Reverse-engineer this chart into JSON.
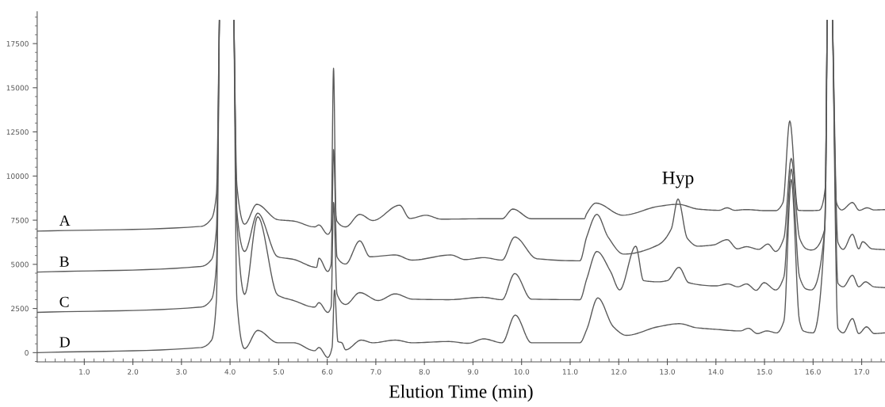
{
  "chart_data": {
    "type": "line",
    "xlabel": "Elution Time (min)",
    "xlim": [
      0.03,
      17.48
    ],
    "ylim": [
      -520,
      19300
    ],
    "xticks": [
      {
        "value": 0.2,
        "label": null
      },
      {
        "value": 0.4,
        "label": null
      },
      {
        "value": 0.6,
        "label": null
      },
      {
        "value": 0.8,
        "label": null
      },
      {
        "value": 1,
        "label": "1.0"
      },
      {
        "value": 1.2,
        "label": null
      },
      {
        "value": 1.4,
        "label": null
      },
      {
        "value": 1.6,
        "label": null
      },
      {
        "value": 1.8,
        "label": null
      },
      {
        "value": 2,
        "label": "2.0"
      },
      {
        "value": 2.2,
        "label": null
      },
      {
        "value": 2.4,
        "label": null
      },
      {
        "value": 2.6,
        "label": null
      },
      {
        "value": 2.8,
        "label": null
      },
      {
        "value": 3,
        "label": "3.0"
      },
      {
        "value": 3.2,
        "label": null
      },
      {
        "value": 3.4,
        "label": null
      },
      {
        "value": 3.6,
        "label": null
      },
      {
        "value": 3.8,
        "label": null
      },
      {
        "value": 4,
        "label": "4.0"
      },
      {
        "value": 4.2,
        "label": null
      },
      {
        "value": 4.4,
        "label": null
      },
      {
        "value": 4.6,
        "label": null
      },
      {
        "value": 4.8,
        "label": null
      },
      {
        "value": 5,
        "label": "5.0"
      },
      {
        "value": 5.2,
        "label": null
      },
      {
        "value": 5.4,
        "label": null
      },
      {
        "value": 5.6,
        "label": null
      },
      {
        "value": 5.8,
        "label": null
      },
      {
        "value": 6,
        "label": "6.0"
      },
      {
        "value": 6.2,
        "label": null
      },
      {
        "value": 6.4,
        "label": null
      },
      {
        "value": 6.6,
        "label": null
      },
      {
        "value": 6.8,
        "label": null
      },
      {
        "value": 7,
        "label": "7.0"
      },
      {
        "value": 7.2,
        "label": null
      },
      {
        "value": 7.4,
        "label": null
      },
      {
        "value": 7.6,
        "label": null
      },
      {
        "value": 7.8,
        "label": null
      },
      {
        "value": 8,
        "label": "8.0"
      },
      {
        "value": 8.2,
        "label": null
      },
      {
        "value": 8.4,
        "label": null
      },
      {
        "value": 8.6,
        "label": null
      },
      {
        "value": 8.8,
        "label": null
      },
      {
        "value": 9,
        "label": "9.0"
      },
      {
        "value": 9.2,
        "label": null
      },
      {
        "value": 9.4,
        "label": null
      },
      {
        "value": 9.6,
        "label": null
      },
      {
        "value": 9.8,
        "label": null
      },
      {
        "value": 10,
        "label": "10.0"
      },
      {
        "value": 10.2,
        "label": null
      },
      {
        "value": 10.4,
        "label": null
      },
      {
        "value": 10.6,
        "label": null
      },
      {
        "value": 10.8,
        "label": null
      },
      {
        "value": 11,
        "label": "11.0"
      },
      {
        "value": 11.2,
        "label": null
      },
      {
        "value": 11.4,
        "label": null
      },
      {
        "value": 11.6,
        "label": null
      },
      {
        "value": 11.8,
        "label": null
      },
      {
        "value": 12,
        "label": "12.0"
      },
      {
        "value": 12.2,
        "label": null
      },
      {
        "value": 12.4,
        "label": null
      },
      {
        "value": 12.6,
        "label": null
      },
      {
        "value": 12.8,
        "label": null
      },
      {
        "value": 13,
        "label": "13.0"
      },
      {
        "value": 13.2,
        "label": null
      },
      {
        "value": 13.4,
        "label": null
      },
      {
        "value": 13.6,
        "label": null
      },
      {
        "value": 13.8,
        "label": null
      },
      {
        "value": 14,
        "label": "14.0"
      },
      {
        "value": 14.2,
        "label": null
      },
      {
        "value": 14.4,
        "label": null
      },
      {
        "value": 14.6,
        "label": null
      },
      {
        "value": 14.8,
        "label": null
      },
      {
        "value": 15,
        "label": "15.0"
      },
      {
        "value": 15.2,
        "label": null
      },
      {
        "value": 15.4,
        "label": null
      },
      {
        "value": 15.6,
        "label": null
      },
      {
        "value": 15.8,
        "label": null
      },
      {
        "value": 16,
        "label": "16.0"
      },
      {
        "value": 16.2,
        "label": null
      },
      {
        "value": 16.4,
        "label": null
      },
      {
        "value": 16.6,
        "label": null
      },
      {
        "value": 16.8,
        "label": null
      },
      {
        "value": 17,
        "label": "17.0"
      },
      {
        "value": 17.2,
        "label": null
      },
      {
        "value": 17.4,
        "label": null
      }
    ],
    "yticks": [
      {
        "value": -500,
        "label": null
      },
      0,
      {
        "value": 500,
        "label": null
      },
      {
        "value": 1000,
        "label": null
      },
      {
        "value": 1500,
        "label": null
      },
      {
        "value": 2000,
        "label": null
      },
      2500,
      {
        "value": 3000,
        "label": null
      },
      {
        "value": 3500,
        "label": null
      },
      {
        "value": 4000,
        "label": null
      },
      {
        "value": 4500,
        "label": null
      },
      5000,
      {
        "value": 5500,
        "label": null
      },
      {
        "value": 6000,
        "label": null
      },
      {
        "value": 6500,
        "label": null
      },
      {
        "value": 7000,
        "label": null
      },
      7500,
      {
        "value": 8000,
        "label": null
      },
      {
        "value": 8500,
        "label": null
      },
      {
        "value": 9000,
        "label": null
      },
      {
        "value": 9500,
        "label": null
      },
      10000,
      {
        "value": 10500,
        "label": null
      },
      {
        "value": 11000,
        "label": null
      },
      {
        "value": 11500,
        "label": null
      },
      {
        "value": 12000,
        "label": null
      },
      12500,
      {
        "value": 13000,
        "label": null
      },
      {
        "value": 13500,
        "label": null
      },
      {
        "value": 14000,
        "label": null
      },
      {
        "value": 14500,
        "label": null
      },
      15000,
      {
        "value": 15500,
        "label": null
      },
      {
        "value": 16000,
        "label": null
      },
      {
        "value": 16500,
        "label": null
      },
      {
        "value": 17000,
        "label": null
      },
      17500,
      {
        "value": 18000,
        "label": null
      },
      {
        "value": 18500,
        "label": null
      },
      {
        "value": 19000,
        "label": null
      }
    ],
    "grid": false,
    "legend": false,
    "marker": "none",
    "line_style": "solid",
    "annotations": [
      {
        "text": "Hyp",
        "x": 13.22,
        "y": 8700
      }
    ],
    "series": [
      {
        "name": "A",
        "color": "#5a5a5a",
        "x": [
          0.03,
          3.4,
          3.62,
          3.72,
          3.78,
          3.93,
          4.08,
          4.14,
          4.3,
          4.55,
          4.98,
          5.31,
          5.74,
          5.83,
          6.01,
          6.08,
          6.13,
          6.18,
          6.2,
          6.38,
          6.67,
          6.94,
          7.49,
          7.7,
          8.03,
          8.35,
          9.2,
          9.6,
          9.82,
          10.2,
          11.29,
          11.34,
          11.53,
          12.08,
          12.81,
          13.22,
          13.63,
          14.06,
          14.23,
          14.39,
          14.61,
          15.04,
          15.23,
          15.38,
          15.52,
          15.69,
          15.88,
          16.12,
          16.26,
          16.29,
          16.345,
          16.4,
          16.48,
          16.59,
          16.81,
          16.95,
          17.11,
          17.26,
          17.48
        ],
        "values": [
          6880,
          7150,
          7600,
          9000,
          18800,
          null,
          18800,
          9500,
          7270,
          8400,
          7530,
          7450,
          7120,
          7230,
          6700,
          7000,
          16100,
          7800,
          7450,
          7120,
          7830,
          7480,
          8350,
          7600,
          7780,
          7560,
          7580,
          7580,
          8130,
          7580,
          7580,
          7870,
          8470,
          7780,
          8280,
          8400,
          8130,
          8060,
          8200,
          8060,
          8100,
          8040,
          8040,
          8500,
          13120,
          8060,
          8040,
          8060,
          9560,
          18800,
          null,
          18800,
          8500,
          8080,
          8500,
          8060,
          8200,
          8080,
          8100
        ]
      },
      {
        "name": "B",
        "color": "#5a5a5a",
        "x": [
          0.03,
          3.4,
          3.62,
          3.72,
          3.78,
          3.93,
          4.08,
          4.14,
          4.3,
          4.57,
          4.98,
          5.31,
          5.78,
          5.83,
          6.01,
          6.08,
          6.13,
          6.2,
          6.38,
          6.67,
          6.88,
          7.4,
          7.75,
          8.54,
          8.84,
          9.22,
          9.6,
          9.86,
          10.31,
          11.2,
          11.34,
          11.55,
          11.78,
          12.1,
          12.81,
          13.08,
          13.22,
          13.41,
          13.63,
          13.95,
          14.23,
          14.44,
          14.63,
          14.88,
          15.07,
          15.23,
          15.4,
          15.55,
          15.72,
          15.86,
          15.96,
          16.24,
          16.29,
          16.345,
          16.4,
          16.51,
          16.62,
          16.81,
          16.94,
          17.02,
          17.21,
          17.48
        ],
        "values": [
          4560,
          4880,
          5280,
          7000,
          18800,
          null,
          18800,
          8000,
          5730,
          7900,
          5430,
          5280,
          4830,
          5350,
          4600,
          5000,
          11500,
          5430,
          5020,
          6330,
          5430,
          5530,
          5240,
          5530,
          5270,
          5380,
          5240,
          6550,
          5320,
          5200,
          6550,
          7830,
          6550,
          5580,
          6100,
          7000,
          8700,
          6480,
          6030,
          6100,
          6400,
          5880,
          6000,
          5850,
          6150,
          5730,
          6500,
          11000,
          6500,
          5880,
          5810,
          7000,
          18800,
          null,
          18800,
          6250,
          5850,
          6700,
          5880,
          6280,
          5880,
          5830
        ]
      },
      {
        "name": "C",
        "color": "#5a5a5a",
        "x": [
          0.03,
          3.4,
          3.62,
          3.72,
          3.78,
          3.93,
          4.08,
          4.14,
          4.3,
          4.57,
          4.98,
          5.31,
          5.74,
          5.83,
          6.01,
          6.08,
          6.13,
          6.2,
          6.38,
          6.67,
          7.05,
          7.4,
          7.75,
          8.5,
          9.2,
          9.6,
          9.86,
          10.2,
          11.2,
          11.34,
          11.55,
          11.83,
          12.02,
          12.35,
          12.51,
          12.81,
          13.0,
          13.24,
          13.44,
          14.0,
          14.25,
          14.45,
          14.63,
          14.83,
          14.99,
          15.23,
          15.4,
          15.55,
          15.72,
          15.86,
          15.96,
          16.24,
          16.29,
          16.345,
          16.4,
          16.51,
          16.62,
          16.81,
          16.94,
          17.08,
          17.25,
          17.48
        ],
        "values": [
          2280,
          2580,
          3030,
          5000,
          18800,
          null,
          18800,
          7500,
          3300,
          7700,
          3260,
          2950,
          2580,
          2830,
          2280,
          2600,
          8500,
          3330,
          2730,
          3400,
          2950,
          3330,
          3030,
          3000,
          3130,
          3000,
          4480,
          3030,
          3000,
          4160,
          5730,
          4600,
          3550,
          6030,
          4080,
          4010,
          4080,
          4830,
          3960,
          3780,
          3890,
          3730,
          3890,
          3530,
          3960,
          3550,
          4300,
          10400,
          4300,
          3600,
          3550,
          7000,
          18800,
          null,
          18800,
          3930,
          3730,
          4380,
          3730,
          4010,
          3730,
          3680
        ]
      },
      {
        "name": "D",
        "color": "#5a5a5a",
        "x": [
          0.03,
          3.4,
          3.62,
          3.72,
          3.78,
          3.93,
          4.08,
          4.14,
          4.3,
          4.57,
          4.98,
          5.31,
          5.74,
          5.83,
          6.01,
          6.1,
          6.15,
          6.22,
          6.3,
          6.38,
          6.7,
          6.94,
          7.4,
          7.75,
          8.5,
          8.9,
          9.22,
          9.6,
          9.87,
          10.2,
          11.2,
          11.34,
          11.57,
          11.89,
          12.16,
          12.8,
          13.25,
          13.6,
          14.0,
          14.5,
          14.67,
          14.85,
          15.05,
          15.25,
          15.4,
          15.55,
          15.72,
          15.8,
          16.0,
          16.24,
          16.29,
          16.345,
          16.4,
          16.51,
          16.62,
          16.81,
          16.94,
          17.1,
          17.26,
          17.48
        ],
        "values": [
          0,
          290,
          710,
          3000,
          18800,
          null,
          18800,
          3000,
          230,
          1260,
          560,
          560,
          110,
          290,
          -270,
          300,
          3550,
          630,
          560,
          160,
          710,
          560,
          710,
          560,
          630,
          530,
          780,
          560,
          2130,
          560,
          560,
          1300,
          3100,
          1460,
          980,
          1460,
          1640,
          1410,
          1320,
          1230,
          1380,
          1080,
          1230,
          1120,
          1800,
          9800,
          1800,
          1230,
          1120,
          7000,
          18800,
          null,
          18800,
          1380,
          1120,
          1930,
          1080,
          1460,
          1080,
          1120
        ]
      }
    ]
  }
}
